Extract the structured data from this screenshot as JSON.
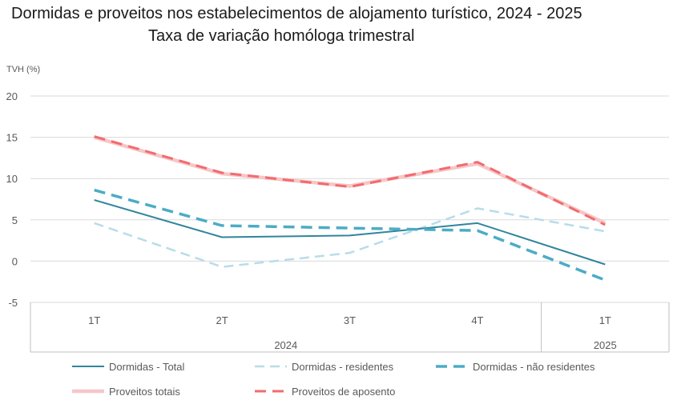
{
  "title": "Dormidas e proveitos nos estabelecimentos de alojamento turístico, 2024 - 2025",
  "subtitle": "Taxa de variação homóloga trimestral",
  "chart_data": {
    "type": "line",
    "ylabel": "TVH (%)",
    "ylim": [
      -5,
      20
    ],
    "yticks": [
      20,
      15,
      10,
      5,
      0,
      -5
    ],
    "grid": true,
    "legend_position": "bottom",
    "categories": [
      "1T",
      "2T",
      "3T",
      "4T",
      "1T"
    ],
    "groups": [
      {
        "label": "2024",
        "span": 4
      },
      {
        "label": "2025",
        "span": 1
      }
    ],
    "series": [
      {
        "name": "Dormidas - Total",
        "values": [
          7.4,
          2.9,
          3.1,
          4.6,
          -0.4
        ],
        "color": "#31859C",
        "dash": "solid",
        "width": 2
      },
      {
        "name": "Dormidas - residentes",
        "values": [
          4.6,
          -0.7,
          1.0,
          6.4,
          3.6
        ],
        "color": "#B7DDE8",
        "dash": "dashed",
        "width": 2.5
      },
      {
        "name": "Dormidas - não residentes",
        "values": [
          8.6,
          4.3,
          4.0,
          3.7,
          -2.3
        ],
        "color": "#4BACC6",
        "dash": "dashed",
        "width": 3.5
      },
      {
        "name": "Proveitos totais",
        "values": [
          15.0,
          10.6,
          9.1,
          11.8,
          4.6
        ],
        "color": "#F7C6C7",
        "dash": "solid",
        "width": 4.5
      },
      {
        "name": "Proveitos de aposento",
        "values": [
          15.1,
          10.7,
          9.0,
          12.0,
          4.4
        ],
        "color": "#F26B6E",
        "dash": "dashed",
        "width": 3
      }
    ]
  }
}
